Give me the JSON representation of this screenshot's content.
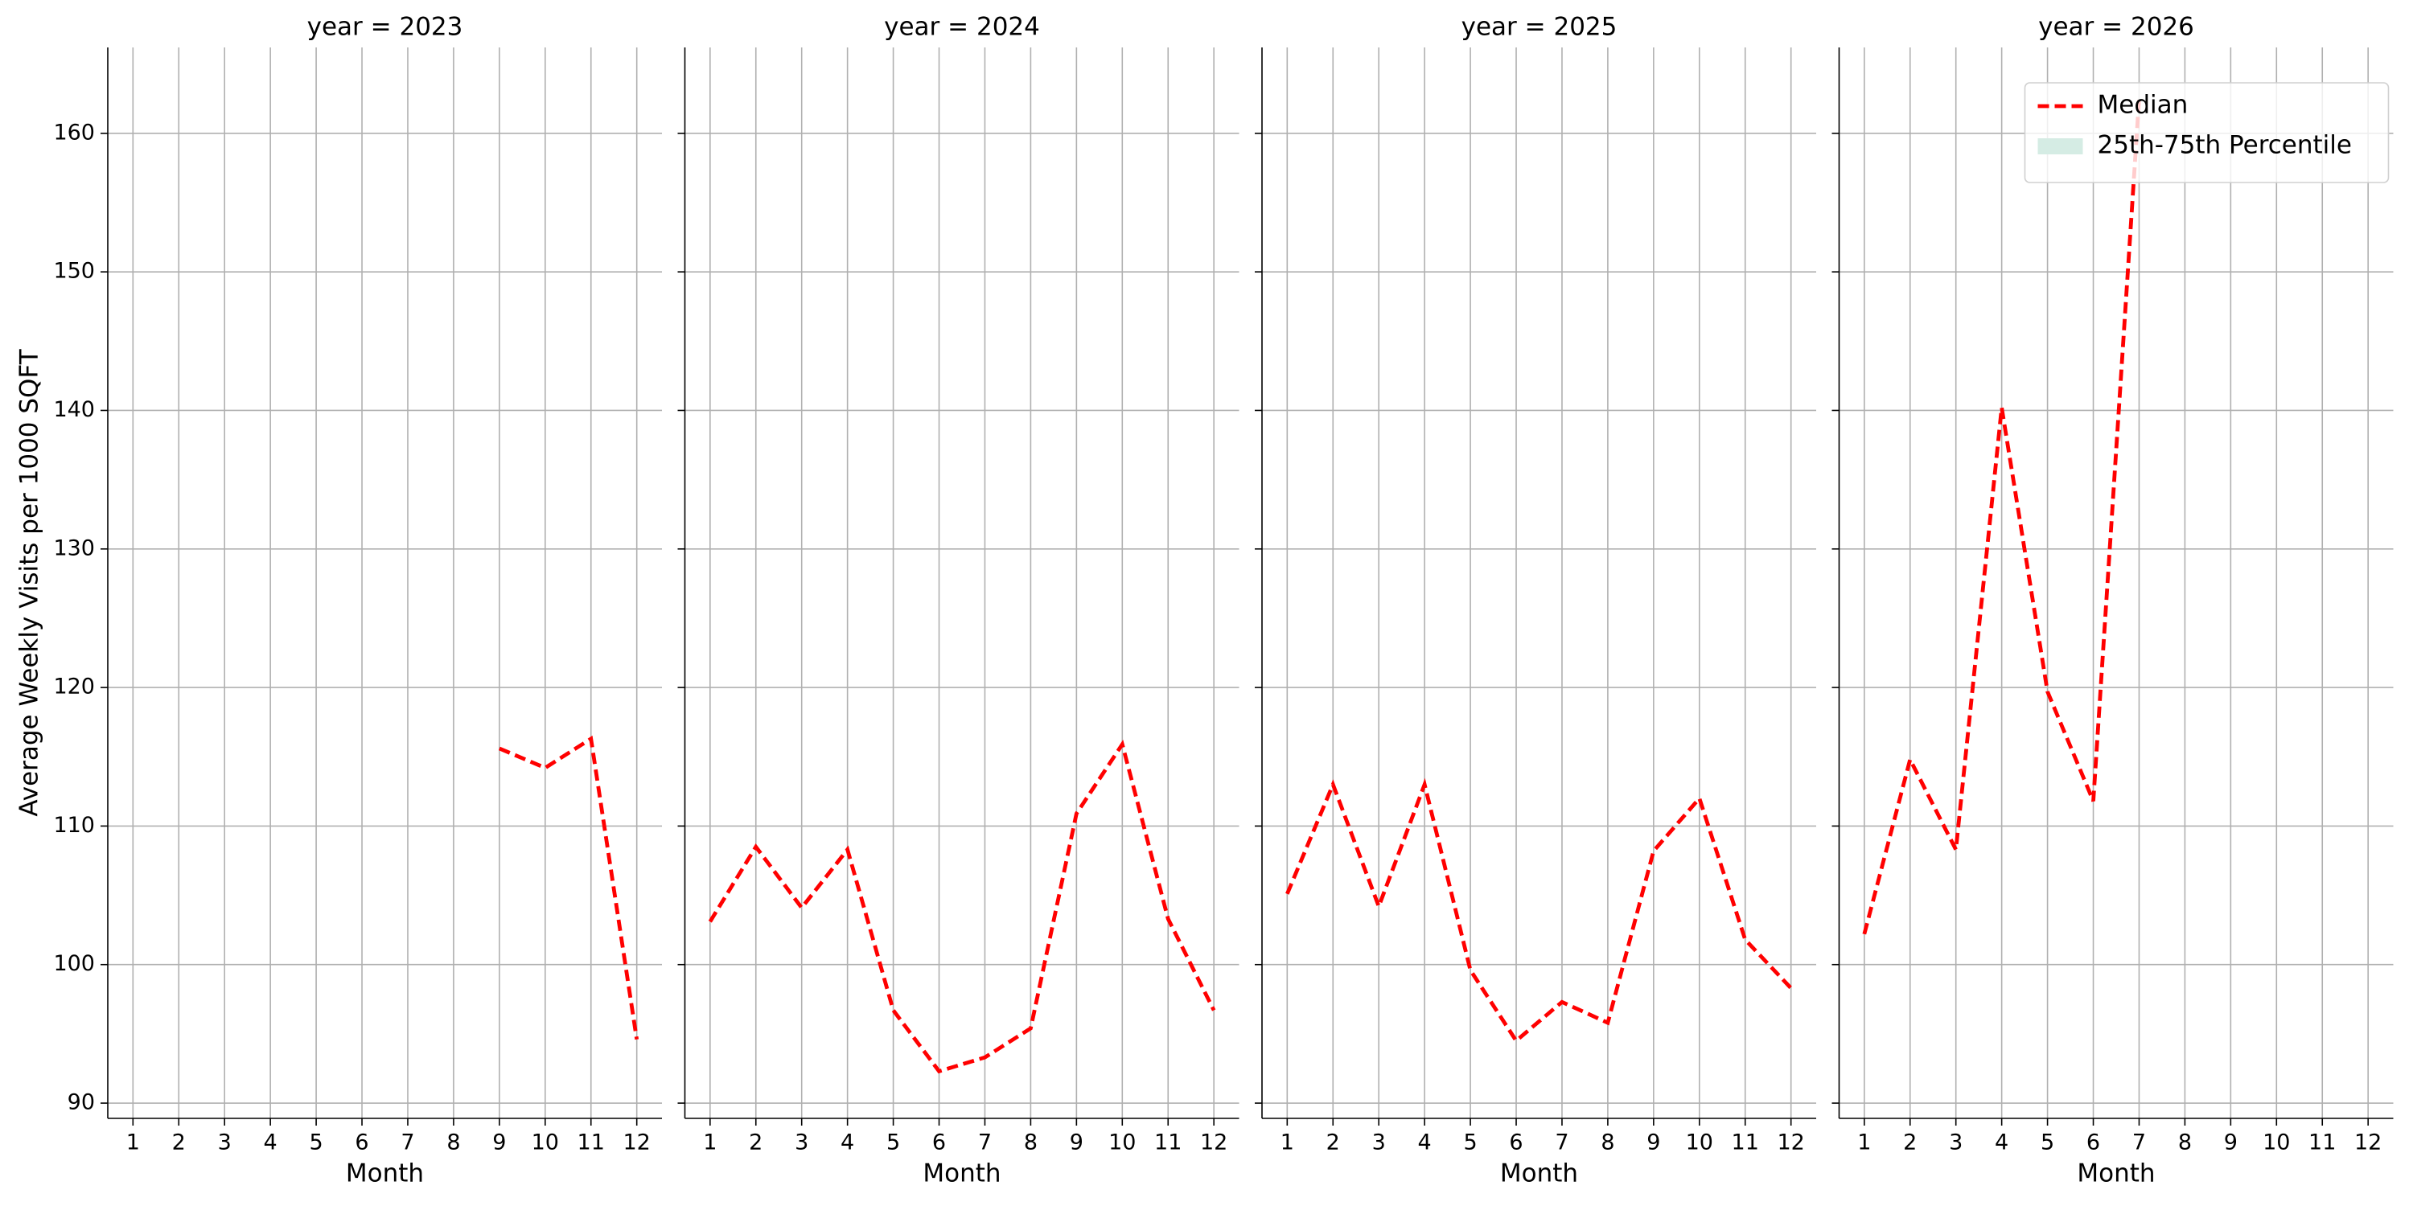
{
  "chart_data": [
    {
      "type": "line",
      "title": "year = 2023",
      "xlabel": "Month",
      "ylabel": "Average Weekly Visits per 1000 SQFT",
      "x": [
        1,
        2,
        3,
        4,
        5,
        6,
        7,
        8,
        9,
        10,
        11,
        12
      ],
      "series": [
        {
          "color": "#ff0000",
          "values": [
            null,
            null,
            null,
            null,
            null,
            null,
            null,
            null,
            115.6,
            114.2,
            116.3,
            94.6
          ]
        }
      ],
      "xlim": [
        0.45,
        12.55
      ],
      "xticks": [
        1,
        2,
        3,
        4,
        5,
        6,
        7,
        8,
        9,
        10,
        11,
        12
      ],
      "ylim": [
        88.9,
        166.2
      ],
      "yticks": [
        90,
        100,
        110,
        120,
        130,
        140,
        150,
        160
      ],
      "grid": true
    },
    {
      "type": "line",
      "title": "year = 2024",
      "xlabel": "Month",
      "x": [
        1,
        2,
        3,
        4,
        5,
        6,
        7,
        8,
        9,
        10,
        11,
        12
      ],
      "series": [
        {
          "color": "#ff0000",
          "values": [
            103.1,
            108.5,
            104.1,
            108.3,
            96.7,
            92.3,
            93.3,
            95.4,
            110.9,
            115.9,
            103.3,
            96.7
          ]
        }
      ],
      "xlim": [
        0.45,
        12.55
      ],
      "xticks": [
        1,
        2,
        3,
        4,
        5,
        6,
        7,
        8,
        9,
        10,
        11,
        12
      ],
      "ylim": [
        88.9,
        166.2
      ],
      "yticks": [
        90,
        100,
        110,
        120,
        130,
        140,
        150,
        160
      ],
      "grid": true
    },
    {
      "type": "line",
      "title": "year = 2025",
      "xlabel": "Month",
      "x": [
        1,
        2,
        3,
        4,
        5,
        6,
        7,
        8,
        9,
        10,
        11,
        12
      ],
      "series": [
        {
          "color": "#ff0000",
          "values": [
            105.1,
            113.0,
            104.2,
            113.0,
            99.6,
            94.5,
            97.3,
            95.8,
            108.2,
            112.0,
            101.8,
            98.3
          ]
        }
      ],
      "xlim": [
        0.45,
        12.55
      ],
      "xticks": [
        1,
        2,
        3,
        4,
        5,
        6,
        7,
        8,
        9,
        10,
        11,
        12
      ],
      "ylim": [
        88.9,
        166.2
      ],
      "yticks": [
        90,
        100,
        110,
        120,
        130,
        140,
        150,
        160
      ],
      "grid": true
    },
    {
      "type": "line",
      "title": "year = 2026",
      "xlabel": "Month",
      "x": [
        1,
        2,
        3,
        4,
        5,
        6,
        7,
        8,
        9,
        10,
        11,
        12
      ],
      "series": [
        {
          "name": "Median",
          "color": "#ff0000",
          "values": [
            102.2,
            114.8,
            108.3,
            140.2,
            119.7,
            111.8,
            162.5,
            null,
            null,
            null,
            null,
            null
          ]
        },
        {
          "name": "25th-75th Percentile",
          "color": "#d5ece4"
        }
      ],
      "xlim": [
        0.45,
        12.55
      ],
      "xticks": [
        1,
        2,
        3,
        4,
        5,
        6,
        7,
        8,
        9,
        10,
        11,
        12
      ],
      "ylim": [
        88.9,
        166.2
      ],
      "yticks": [
        90,
        100,
        110,
        120,
        130,
        140,
        150,
        160
      ],
      "grid": true,
      "legend": "upper right"
    }
  ]
}
